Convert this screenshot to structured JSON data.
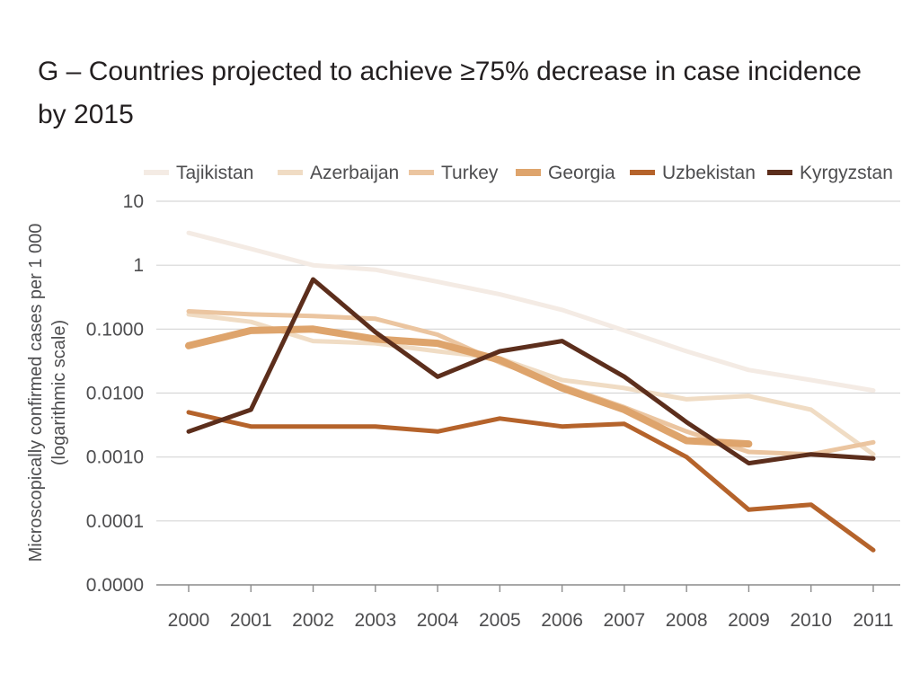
{
  "chart_data": {
    "type": "line",
    "title": "G – Countries projected to achieve ≥75% decrease in case incidence by 2015",
    "ylabel_line1": "Microscopically confirmed cases per 1 000",
    "ylabel_line2": "(logarithmic scale)",
    "xlabel": "",
    "y_scale": "log",
    "ylim": [
      1e-05,
      10
    ],
    "y_ticks": [
      {
        "value": 10,
        "label": "10"
      },
      {
        "value": 1,
        "label": "1"
      },
      {
        "value": 0.1,
        "label": "0.1000"
      },
      {
        "value": 0.01,
        "label": "0.0100"
      },
      {
        "value": 0.001,
        "label": "0.0010"
      },
      {
        "value": 0.0001,
        "label": "0.0001"
      },
      {
        "value": 1e-05,
        "label": "0.0000"
      }
    ],
    "x": [
      "2000",
      "2001",
      "2002",
      "2003",
      "2004",
      "2005",
      "2006",
      "2007",
      "2008",
      "2009",
      "2010",
      "2011"
    ],
    "grid": true,
    "legend_position": "top",
    "series": [
      {
        "name": "Tajikistan",
        "color": "#f4ebe4",
        "width": 5,
        "values": [
          3.2,
          1.8,
          1.0,
          0.85,
          0.55,
          0.35,
          0.2,
          0.095,
          0.045,
          0.023,
          0.016,
          0.011
        ]
      },
      {
        "name": "Azerbaijan",
        "color": "#f0dcc4",
        "width": 5,
        "values": [
          0.17,
          0.13,
          0.065,
          0.06,
          0.045,
          0.035,
          0.016,
          0.012,
          0.008,
          0.009,
          0.0055,
          0.0011
        ]
      },
      {
        "name": "Turkey",
        "color": "#ebc5a0",
        "width": 5,
        "values": [
          0.19,
          0.17,
          0.16,
          0.145,
          0.082,
          0.03,
          0.013,
          0.006,
          0.0025,
          0.0012,
          0.0011,
          0.0017
        ]
      },
      {
        "name": "Georgia",
        "color": "#dea46c",
        "width": 8,
        "values": [
          0.055,
          0.095,
          0.1,
          0.07,
          0.06,
          0.033,
          0.012,
          0.0055,
          0.0018,
          0.0016,
          null,
          null
        ]
      },
      {
        "name": "Uzbekistan",
        "color": "#b5632b",
        "width": 5,
        "values": [
          0.005,
          0.003,
          0.003,
          0.003,
          0.0025,
          0.004,
          0.003,
          0.0033,
          0.001,
          0.00015,
          0.00018,
          3.5e-05
        ]
      },
      {
        "name": "Kyrgyzstan",
        "color": "#5c2e1c",
        "width": 5,
        "values": [
          0.0025,
          0.0055,
          0.6,
          0.09,
          0.018,
          0.045,
          0.065,
          0.018,
          0.0035,
          0.0008,
          0.0011,
          0.00095
        ]
      }
    ]
  }
}
